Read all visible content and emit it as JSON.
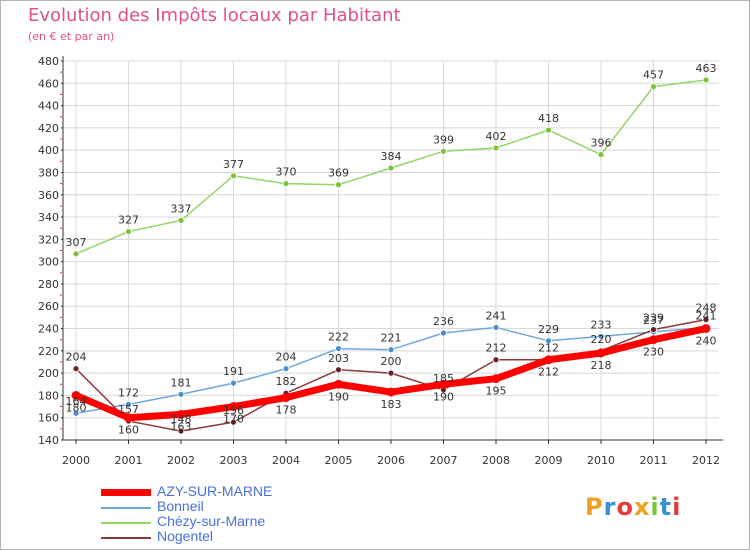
{
  "title": "Evolution des Impôts locaux par Habitant",
  "subtitle": "(en € et par an)",
  "logo": {
    "text": "Proxiti",
    "letters": [
      "P",
      "r",
      "o",
      "x",
      "i",
      "t",
      "i"
    ],
    "colors": [
      "#f0a020",
      "#3a8fd6",
      "#e83a3a",
      "#f0a020",
      "#7cc23a",
      "#3a8fd6",
      "#e83a3a"
    ]
  },
  "chart_data": {
    "type": "line",
    "title": "Evolution des Impôts locaux par Habitant",
    "subtitle": "(en € et par an)",
    "xlabel": "",
    "ylabel": "",
    "categories": [
      "2000",
      "2001",
      "2002",
      "2003",
      "2004",
      "2005",
      "2006",
      "2007",
      "2008",
      "2009",
      "2010",
      "2011",
      "2012"
    ],
    "ylim": [
      140,
      480
    ],
    "yticks": [
      140,
      160,
      180,
      200,
      220,
      240,
      260,
      280,
      300,
      320,
      340,
      360,
      380,
      400,
      420,
      440,
      460,
      480
    ],
    "grid": true,
    "legend_position": "bottom-left",
    "series": [
      {
        "name": "AZY-SUR-MARNE",
        "color": "#ff0000",
        "width": 7,
        "marker": "#ff0000",
        "values": [
          180,
          160,
          163,
          170,
          178,
          190,
          183,
          190,
          195,
          212,
          218,
          230,
          240
        ]
      },
      {
        "name": "Bonneil",
        "color": "#6fa8dc",
        "width": 1.5,
        "marker": "#4a8fd0",
        "values": [
          164,
          172,
          181,
          191,
          204,
          222,
          221,
          236,
          241,
          229,
          233,
          237,
          241
        ]
      },
      {
        "name": "Chézy-sur-Marne",
        "color": "#93d466",
        "width": 1.5,
        "marker": "#7cc23a",
        "values": [
          307,
          327,
          337,
          377,
          370,
          369,
          384,
          399,
          402,
          418,
          396,
          457,
          463
        ]
      },
      {
        "name": "Nogentel",
        "color": "#8b3a3a",
        "width": 1.5,
        "marker": "#6b1f1f",
        "values": [
          204,
          157,
          148,
          156,
          182,
          203,
          200,
          185,
          212,
          212,
          220,
          239,
          248
        ]
      }
    ]
  }
}
